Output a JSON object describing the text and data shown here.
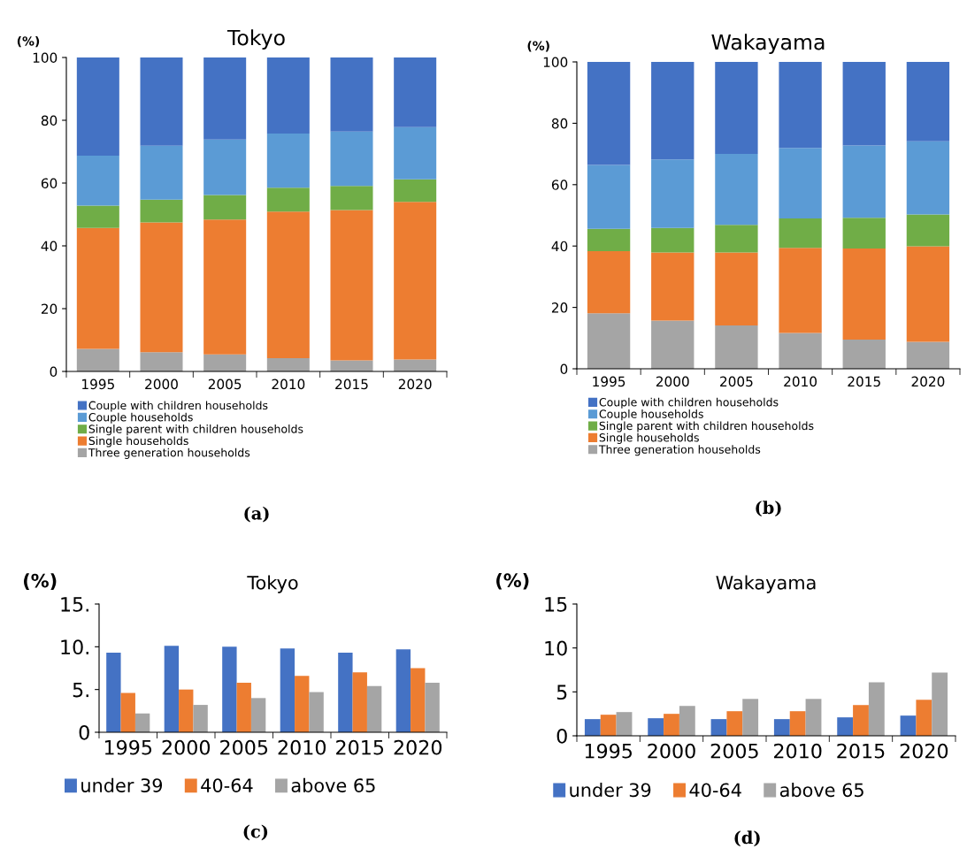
{
  "chart_data": [
    {
      "type": "bar",
      "title": "Tokyo",
      "ylabel": "(%)",
      "stacked": true,
      "categories": [
        "1995",
        "2000",
        "2005",
        "2010",
        "2015",
        "2020"
      ],
      "ylim": [
        0,
        100
      ],
      "yticks": [
        0,
        20,
        40,
        60,
        80,
        100
      ],
      "legend": "bottom",
      "annotations": [
        "(a)"
      ],
      "series": [
        {
          "name": "Three generation households",
          "color": "#a5a5a5",
          "values": [
            7.2,
            6.1,
            5.4,
            4.2,
            3.5,
            3.8
          ]
        },
        {
          "name": "Single households",
          "color": "#ed7d31",
          "values": [
            38.5,
            41.4,
            43.0,
            46.7,
            47.9,
            50.2
          ]
        },
        {
          "name": "Single parent with children households",
          "color": "#70ad47",
          "values": [
            7.1,
            7.2,
            7.8,
            7.6,
            7.7,
            7.2
          ]
        },
        {
          "name": "Couple households",
          "color": "#5b9bd5",
          "values": [
            15.9,
            17.2,
            17.7,
            17.3,
            17.3,
            16.6
          ]
        },
        {
          "name": "Couple with children households",
          "color": "#4472c4",
          "values": [
            31.3,
            28.1,
            26.1,
            24.2,
            23.6,
            22.2
          ]
        }
      ]
    },
    {
      "type": "bar",
      "title": "Wakayama",
      "ylabel": "(%)",
      "stacked": true,
      "categories": [
        "1995",
        "2000",
        "2005",
        "2010",
        "2015",
        "2020"
      ],
      "ylim": [
        0,
        100
      ],
      "yticks": [
        0,
        20,
        40,
        60,
        80,
        100
      ],
      "legend": "bottom",
      "annotations": [
        "(b)"
      ],
      "series": [
        {
          "name": "Three generation households",
          "color": "#a5a5a5",
          "values": [
            18.1,
            15.7,
            14.1,
            11.7,
            9.5,
            8.8
          ]
        },
        {
          "name": "Single households",
          "color": "#ed7d31",
          "values": [
            20.2,
            22.2,
            23.8,
            27.7,
            29.7,
            31.1
          ]
        },
        {
          "name": "Single parent with children households",
          "color": "#70ad47",
          "values": [
            7.3,
            8.0,
            9.0,
            9.6,
            10.0,
            10.4
          ]
        },
        {
          "name": "Couple households",
          "color": "#5b9bd5",
          "values": [
            20.8,
            22.3,
            23.1,
            23.0,
            23.6,
            23.8
          ]
        },
        {
          "name": "Couple with children households",
          "color": "#4472c4",
          "values": [
            33.6,
            31.8,
            30.0,
            28.0,
            27.2,
            25.9
          ]
        }
      ]
    },
    {
      "type": "bar",
      "title": "Tokyo",
      "ylabel": "(%)",
      "categories": [
        "1995",
        "2000",
        "2005",
        "2010",
        "2015",
        "2020"
      ],
      "ylim": [
        0,
        15
      ],
      "yticks": [
        {
          "value": 0,
          "label": "0"
        },
        {
          "value": 5,
          "label": "5."
        },
        {
          "value": 10,
          "label": "10."
        },
        {
          "value": 15,
          "label": "15."
        }
      ],
      "legend": "bottom",
      "annotations": [
        "(c)"
      ],
      "series": [
        {
          "name": "under 39",
          "color": "#4472c4",
          "values": [
            9.3,
            10.1,
            10.0,
            9.8,
            9.3,
            9.7
          ]
        },
        {
          "name": "40-64",
          "color": "#ed7d31",
          "values": [
            4.6,
            5.0,
            5.8,
            6.6,
            7.0,
            7.5
          ]
        },
        {
          "name": "above 65",
          "color": "#a5a5a5",
          "values": [
            2.2,
            3.2,
            4.0,
            4.7,
            5.4,
            5.8
          ]
        }
      ]
    },
    {
      "type": "bar",
      "title": "Wakayama",
      "ylabel": "(%)",
      "categories": [
        "1995",
        "2000",
        "2005",
        "2010",
        "2015",
        "2020"
      ],
      "ylim": [
        0,
        15
      ],
      "yticks": [
        0,
        5,
        10,
        15
      ],
      "legend": "bottom",
      "annotations": [
        "(d)"
      ],
      "series": [
        {
          "name": "under 39",
          "color": "#4472c4",
          "values": [
            1.9,
            2.0,
            1.9,
            1.9,
            2.1,
            2.3
          ]
        },
        {
          "name": "40-64",
          "color": "#ed7d31",
          "values": [
            2.4,
            2.5,
            2.8,
            2.8,
            3.5,
            4.1
          ]
        },
        {
          "name": "above 65",
          "color": "#a5a5a5",
          "values": [
            2.7,
            3.4,
            4.2,
            4.2,
            6.1,
            7.2
          ]
        }
      ]
    }
  ]
}
